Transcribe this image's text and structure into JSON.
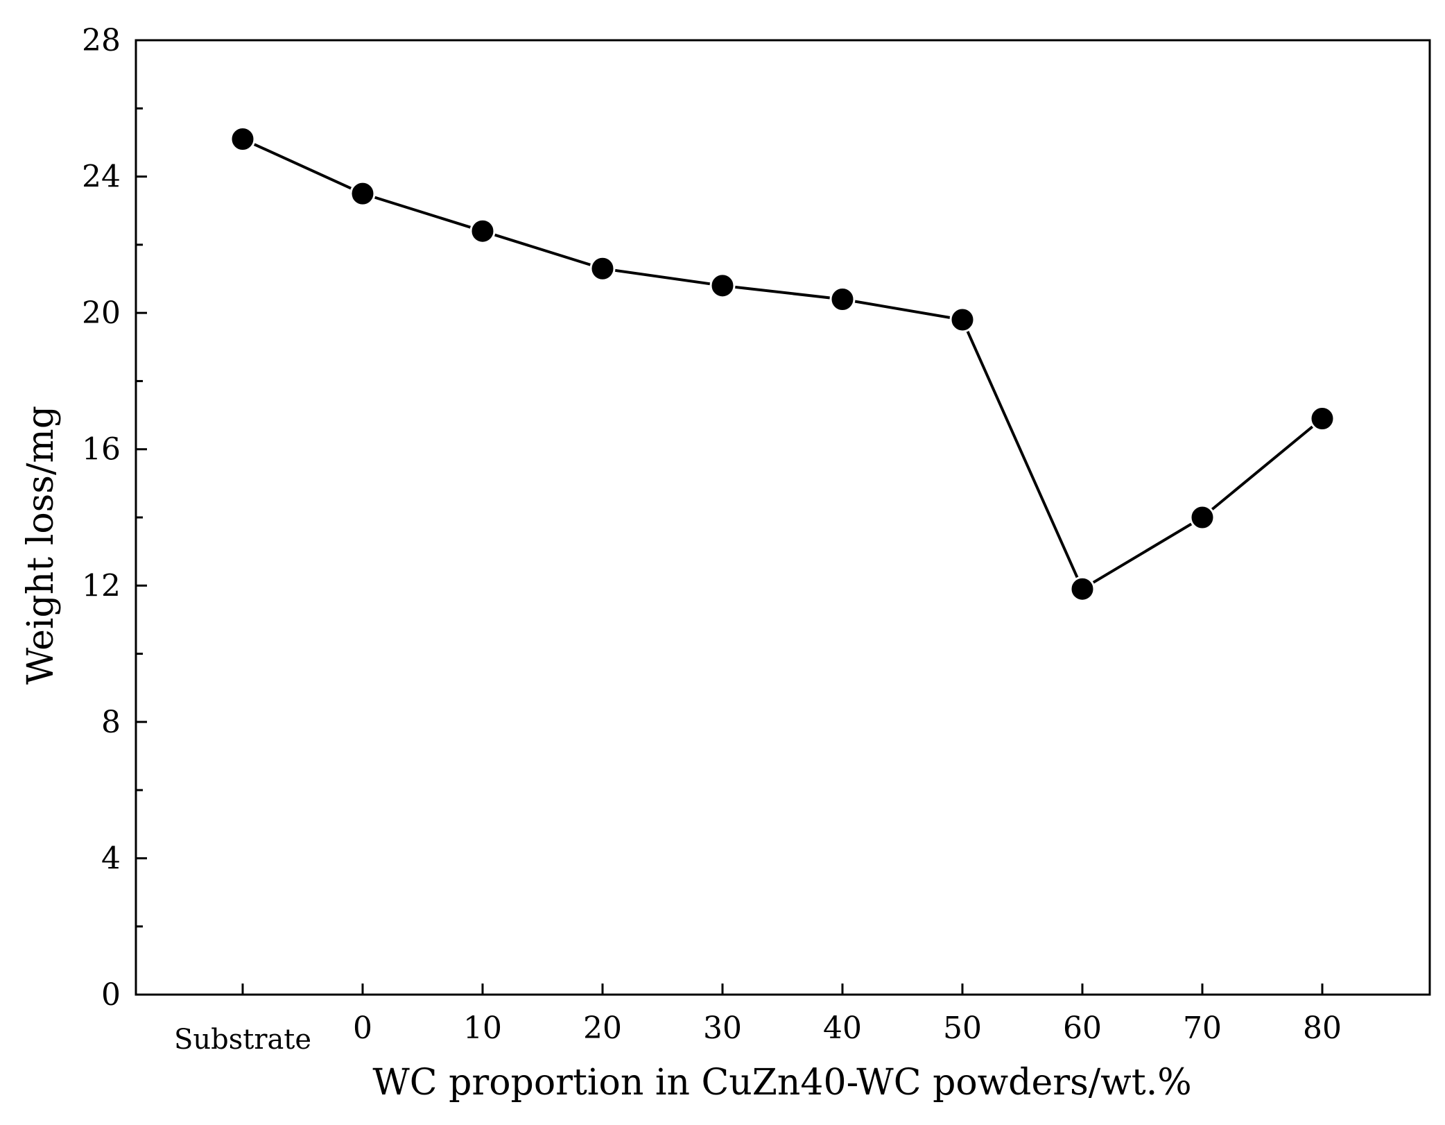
{
  "chart_data": {
    "type": "line",
    "title": "",
    "xlabel": "WC proportion in CuZn40-WC powders/wt.%",
    "ylabel": "Weight loss/mg",
    "categories": [
      "Substrate",
      "0",
      "10",
      "20",
      "30",
      "40",
      "50",
      "60",
      "70",
      "80"
    ],
    "series": [
      {
        "name": "Weight loss",
        "values": [
          25.1,
          23.5,
          22.4,
          21.3,
          20.8,
          20.4,
          19.8,
          11.9,
          14.0,
          16.9
        ]
      }
    ],
    "ylim": [
      0,
      28
    ],
    "yticks": [
      "0",
      "4",
      "8",
      "12",
      "16",
      "20",
      "24",
      "28"
    ],
    "y_minor_step": 2,
    "grid": false,
    "legend": "none",
    "colors": {
      "line": "#000000",
      "marker": "#000000",
      "axis": "#000000"
    }
  }
}
